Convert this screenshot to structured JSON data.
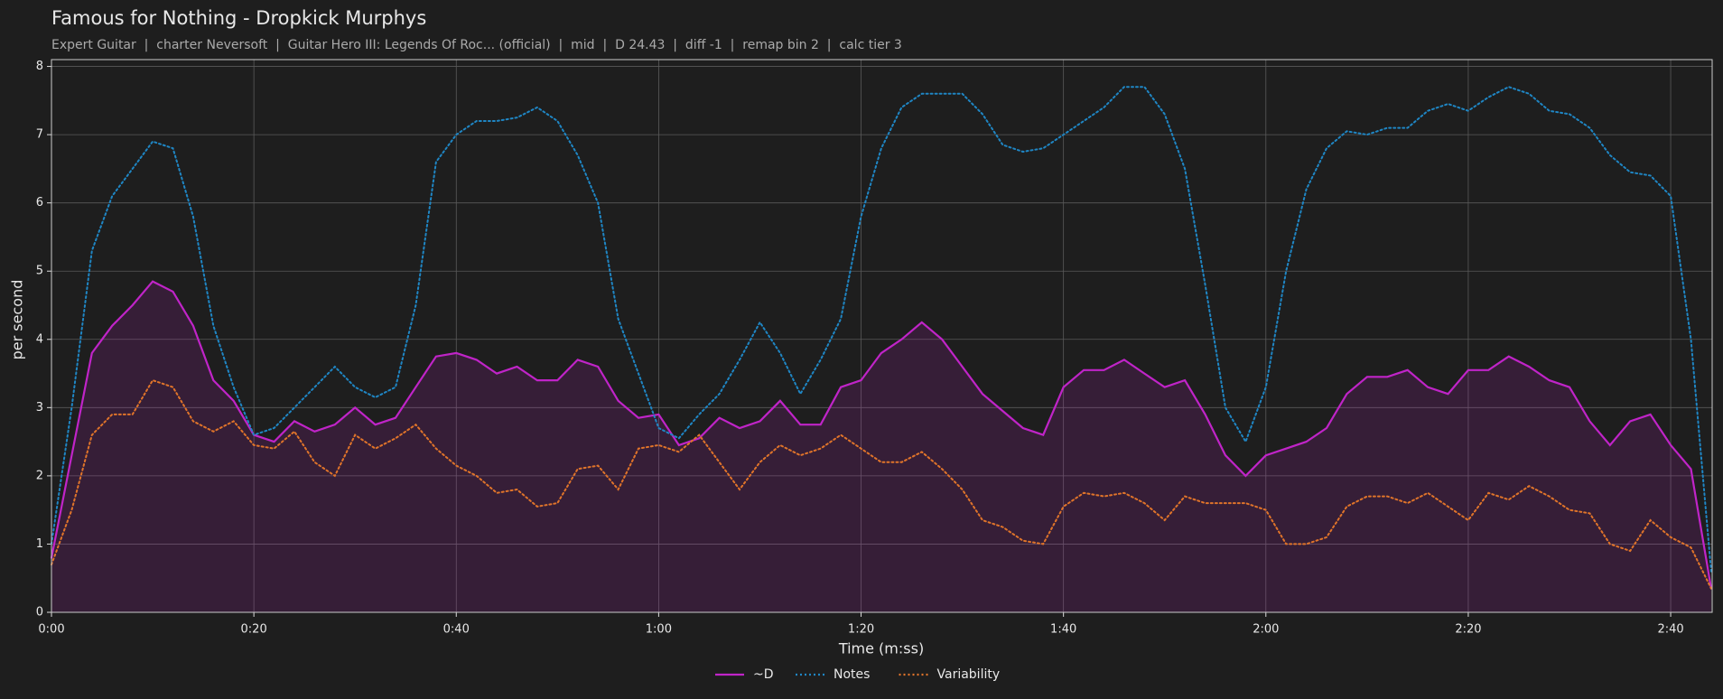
{
  "chart_data": {
    "type": "line",
    "title": "Famous for Nothing - Dropkick Murphys",
    "subtitle": "Expert Guitar  |  charter Neversoft  |  Guitar Hero III: Legends Of Roc... (official)  |  mid  |  D 24.43  |  diff -1  |  remap bin 2  |  calc tier 3",
    "x_label": "Time (m:ss)",
    "y_label": "per second",
    "xlim": [
      0,
      164.1
    ],
    "ylim": [
      0,
      8.1
    ],
    "xticks": [
      {
        "value": 0,
        "label": "0:00"
      },
      {
        "value": 20,
        "label": "0:20"
      },
      {
        "value": 40,
        "label": "0:40"
      },
      {
        "value": 60,
        "label": "1:00"
      },
      {
        "value": 80,
        "label": "1:20"
      },
      {
        "value": 100,
        "label": "1:40"
      },
      {
        "value": 120,
        "label": "2:00"
      },
      {
        "value": 140,
        "label": "2:20"
      },
      {
        "value": 160,
        "label": "2:40"
      }
    ],
    "yticks": [
      0,
      1,
      2,
      3,
      4,
      5,
      6,
      7,
      8
    ],
    "grid": true,
    "legend": "bottom",
    "x": [
      0,
      2,
      4,
      6,
      8,
      10,
      12,
      14,
      16,
      18,
      20,
      22,
      24,
      26,
      28,
      30,
      32,
      34,
      36,
      38,
      40,
      42,
      44,
      46,
      48,
      50,
      52,
      54,
      56,
      58,
      60,
      62,
      64,
      66,
      68,
      70,
      72,
      74,
      76,
      78,
      80,
      82,
      84,
      86,
      88,
      90,
      92,
      94,
      96,
      98,
      100,
      102,
      104,
      106,
      108,
      110,
      112,
      114,
      116,
      118,
      120,
      122,
      124,
      126,
      128,
      130,
      132,
      134,
      136,
      138,
      140,
      142,
      144,
      146,
      148,
      150,
      152,
      154,
      156,
      158,
      160,
      162,
      164
    ],
    "series": [
      {
        "name": "~D",
        "color": "#c024c8",
        "style": "solid",
        "area": true,
        "values": [
          0.8,
          2.3,
          3.8,
          4.2,
          4.5,
          4.85,
          4.7,
          4.2,
          3.4,
          3.1,
          2.6,
          2.5,
          2.8,
          2.65,
          2.75,
          3.0,
          2.75,
          2.85,
          3.3,
          3.75,
          3.8,
          3.7,
          3.5,
          3.6,
          3.4,
          3.4,
          3.7,
          3.6,
          3.1,
          2.85,
          2.9,
          2.45,
          2.55,
          2.85,
          2.7,
          2.8,
          3.1,
          2.75,
          2.75,
          3.3,
          3.4,
          3.8,
          4.0,
          4.25,
          4.0,
          3.6,
          3.2,
          2.95,
          2.7,
          2.6,
          3.3,
          3.55,
          3.55,
          3.7,
          3.5,
          3.3,
          3.4,
          2.9,
          2.3,
          2.0,
          2.3,
          2.4,
          2.5,
          2.7,
          3.2,
          3.45,
          3.45,
          3.55,
          3.3,
          3.2,
          3.55,
          3.55,
          3.75,
          3.6,
          3.4,
          3.3,
          2.8,
          2.45,
          2.8,
          2.9,
          2.45,
          2.1,
          0.35
        ]
      },
      {
        "name": "Notes",
        "color": "#1f86c4",
        "style": "dotted",
        "area": false,
        "values": [
          1.0,
          3.0,
          5.3,
          6.1,
          6.5,
          6.9,
          6.8,
          5.8,
          4.2,
          3.3,
          2.6,
          2.7,
          3.0,
          3.3,
          3.6,
          3.3,
          3.15,
          3.3,
          4.5,
          6.6,
          7.0,
          7.2,
          7.2,
          7.25,
          7.4,
          7.2,
          6.7,
          6.0,
          4.3,
          3.5,
          2.7,
          2.55,
          2.9,
          3.2,
          3.7,
          4.25,
          3.8,
          3.2,
          3.7,
          4.3,
          5.8,
          6.8,
          7.4,
          7.6,
          7.6,
          7.6,
          7.3,
          6.85,
          6.75,
          6.8,
          7.0,
          7.2,
          7.4,
          7.7,
          7.7,
          7.3,
          6.5,
          4.8,
          3.0,
          2.5,
          3.3,
          5.0,
          6.2,
          6.8,
          7.05,
          7.0,
          7.1,
          7.1,
          7.35,
          7.45,
          7.35,
          7.55,
          7.7,
          7.6,
          7.35,
          7.3,
          7.1,
          6.7,
          6.45,
          6.4,
          6.1,
          4.0,
          0.6
        ]
      },
      {
        "name": "Variability",
        "color": "#e0742a",
        "style": "dotted",
        "area": false,
        "values": [
          0.7,
          1.5,
          2.6,
          2.9,
          2.9,
          3.4,
          3.3,
          2.8,
          2.65,
          2.8,
          2.45,
          2.4,
          2.65,
          2.2,
          2.0,
          2.6,
          2.4,
          2.55,
          2.75,
          2.4,
          2.15,
          2.0,
          1.75,
          1.8,
          1.55,
          1.6,
          2.1,
          2.15,
          1.8,
          2.4,
          2.45,
          2.35,
          2.6,
          2.2,
          1.8,
          2.2,
          2.45,
          2.3,
          2.4,
          2.6,
          2.4,
          2.2,
          2.2,
          2.35,
          2.1,
          1.8,
          1.35,
          1.25,
          1.05,
          1.0,
          1.55,
          1.75,
          1.7,
          1.75,
          1.6,
          1.35,
          1.7,
          1.6,
          1.6,
          1.6,
          1.5,
          1.0,
          1.0,
          1.1,
          1.55,
          1.7,
          1.7,
          1.6,
          1.75,
          1.55,
          1.35,
          1.75,
          1.65,
          1.85,
          1.7,
          1.5,
          1.45,
          1.0,
          0.9,
          1.35,
          1.1,
          0.95,
          0.35
        ]
      }
    ]
  }
}
